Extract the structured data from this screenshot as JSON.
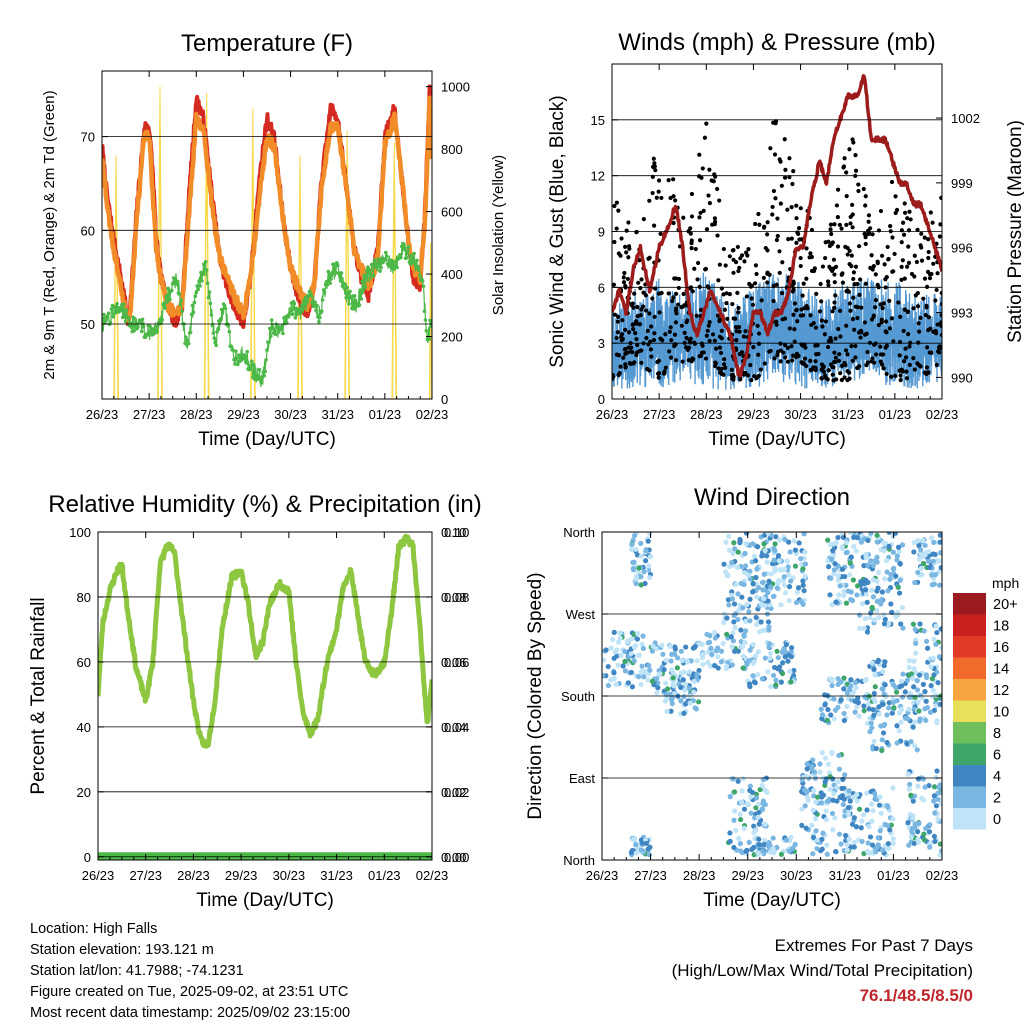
{
  "info": {
    "location": "Location: High Falls",
    "elevation": "Station elevation: 193.121 m",
    "latlon": "Station lat/lon: 41.7988; -74.1231",
    "created": "Figure created on Tue, 2025-09-02, at 23:51 UTC",
    "recent": "Most recent data timestamp: 2025/09/02 23:15:00"
  },
  "extremes": {
    "title": "Extremes For Past 7 Days",
    "subtitle": "(High/Low/Max Wind/Total Precipitation)",
    "values": "76.1/48.5/8.5/0",
    "value_color": "#c0272d"
  },
  "chart_data": [
    {
      "id": "temperature",
      "type": "line",
      "title": "Temperature (F)",
      "xlabel": "Time (Day/UTC)",
      "ylabel": "2m & 9m T (Red, Orange) & 2m Td (Green)",
      "y2label": "Solar Insolation (Yellow)",
      "xticks": [
        "26/23",
        "27/23",
        "28/23",
        "29/23",
        "30/23",
        "31/23",
        "01/23",
        "02/23"
      ],
      "xlim": [
        0,
        7
      ],
      "ylim": [
        42,
        77
      ],
      "yticks": [
        50,
        60,
        70
      ],
      "y2lim": [
        0,
        1050
      ],
      "y2ticks": [
        0,
        200,
        400,
        600,
        800,
        1000
      ],
      "grid": true,
      "colors": {
        "t2m": "#d42a20",
        "t9m": "#f28c28",
        "td": "#4cb848",
        "solar": "#f7d94c"
      },
      "series": [
        {
          "key": "t2m",
          "axis": "left",
          "x": [
            0,
            0.1,
            0.25,
            0.4,
            0.5,
            0.55,
            0.6,
            0.75,
            0.9,
            1.0,
            1.08,
            1.15,
            1.25,
            1.4,
            1.55,
            1.7,
            1.85,
            2.0,
            2.15,
            2.35,
            2.5,
            2.65,
            2.8,
            3.0,
            3.15,
            3.35,
            3.5,
            3.65,
            3.85,
            4.0,
            4.15,
            4.35,
            4.5,
            4.65,
            4.85,
            5.0,
            5.2,
            5.35,
            5.5,
            5.65,
            5.85,
            6.0,
            6.2,
            6.35,
            6.5,
            6.6,
            6.75,
            6.85,
            6.95,
            7.0
          ],
          "y": [
            69,
            64,
            59,
            55,
            52,
            50,
            52,
            63,
            71,
            71,
            66,
            59,
            55,
            52,
            50,
            52,
            64,
            74,
            72,
            63,
            57,
            54,
            52,
            50,
            55,
            66,
            72,
            70,
            61,
            56,
            53,
            51,
            54,
            65,
            73,
            72,
            64,
            58,
            55,
            53,
            58,
            70,
            73,
            66,
            59,
            55,
            54,
            62,
            75,
            68
          ]
        },
        {
          "key": "t9m",
          "axis": "left",
          "x": [
            0,
            0.1,
            0.25,
            0.4,
            0.5,
            0.6,
            0.75,
            0.9,
            1.0,
            1.15,
            1.25,
            1.4,
            1.55,
            1.7,
            1.85,
            2.0,
            2.15,
            2.35,
            2.5,
            2.65,
            2.8,
            3.0,
            3.15,
            3.35,
            3.5,
            3.65,
            3.85,
            4.0,
            4.15,
            4.35,
            4.5,
            4.65,
            4.85,
            5.0,
            5.2,
            5.35,
            5.5,
            5.65,
            5.85,
            6.0,
            6.2,
            6.35,
            6.5,
            6.6,
            6.75,
            6.85,
            6.95,
            7.0
          ],
          "y": [
            68,
            63,
            58,
            54,
            51,
            51,
            62,
            70,
            70,
            58,
            55,
            52,
            51,
            52,
            62,
            72,
            71,
            62,
            57,
            55,
            53,
            51,
            55,
            64,
            70,
            69,
            61,
            56,
            54,
            52,
            54,
            64,
            71,
            71,
            64,
            58,
            56,
            54,
            57,
            69,
            72,
            66,
            59,
            56,
            55,
            61,
            74,
            68
          ]
        },
        {
          "key": "td",
          "axis": "left",
          "x": [
            0,
            0.2,
            0.4,
            0.6,
            0.8,
            1.0,
            1.2,
            1.4,
            1.6,
            1.8,
            2.0,
            2.2,
            2.4,
            2.6,
            2.8,
            3.0,
            3.2,
            3.4,
            3.6,
            3.8,
            4.0,
            4.2,
            4.4,
            4.6,
            4.8,
            5.0,
            5.2,
            5.4,
            5.6,
            5.8,
            6.0,
            6.2,
            6.4,
            6.6,
            6.8,
            6.9,
            7.0
          ],
          "y": [
            50,
            51,
            52,
            50,
            50,
            49,
            50,
            53,
            55,
            47,
            54,
            56,
            48,
            52,
            46,
            47,
            45,
            44,
            50,
            49,
            52,
            51,
            53,
            51,
            55,
            56,
            53,
            52,
            55,
            56,
            57,
            56,
            58,
            57,
            55,
            48,
            51
          ]
        }
      ],
      "solar": {
        "axis": "right",
        "peak_x": [
          0.3,
          1.23,
          2.22,
          3.2,
          4.2,
          5.2,
          6.2,
          6.97
        ],
        "peak_w": [
          0.1,
          0.1,
          0.1,
          0.1,
          0.1,
          0.1,
          0.1,
          0.05
        ],
        "peak_y": [
          780,
          1000,
          980,
          930,
          780,
          860,
          820,
          500
        ]
      }
    },
    {
      "id": "winds",
      "type": "scatter",
      "title": "Winds (mph) & Pressure (mb)",
      "xlabel": "Time (Day/UTC)",
      "ylabel": "Sonic Wind & Gust (Blue, Black)",
      "y2label": "Station Pressure (Maroon)",
      "xticks": [
        "26/23",
        "27/23",
        "28/23",
        "29/23",
        "30/23",
        "31/23",
        "01/23",
        "02/23"
      ],
      "xlim": [
        0,
        7
      ],
      "ylim": [
        0,
        18
      ],
      "yticks": [
        0,
        3,
        6,
        9,
        12,
        15
      ],
      "y2lim": [
        989.0,
        1004.5
      ],
      "y2ticks": [
        990,
        993,
        996,
        999,
        1002
      ],
      "grid": true,
      "colors": {
        "wind": "#5599d2",
        "gust": "#000000",
        "pressure": "#9c1c1c"
      },
      "wind_envelope": {
        "x": [
          0,
          0.5,
          1,
          1.5,
          2,
          2.5,
          3,
          3.5,
          4,
          4.5,
          5,
          5.5,
          6,
          6.5,
          7
        ],
        "hi": [
          5,
          6,
          6.5,
          5.5,
          7,
          5,
          6,
          7,
          6.5,
          5.5,
          6.5,
          6.5,
          6.5,
          5.5,
          6
        ],
        "lo": [
          0.5,
          0.5,
          0.5,
          1,
          0.5,
          0.5,
          0.5,
          1,
          0.5,
          0.5,
          1,
          1,
          0.5,
          0.5,
          1
        ]
      },
      "gust_envelope": {
        "x": [
          0,
          0.5,
          1,
          1.5,
          2,
          2.5,
          3,
          3.5,
          4,
          4.5,
          5,
          5.5,
          6,
          6.5,
          7
        ],
        "hi": [
          11,
          9,
          15,
          10,
          15,
          8,
          9,
          16,
          11,
          8,
          15,
          10,
          12,
          9,
          11
        ],
        "lo": [
          1,
          2,
          1,
          2,
          2,
          1,
          1,
          2,
          2,
          1,
          1,
          2,
          1,
          1,
          2
        ]
      },
      "pressure": {
        "x": [
          0,
          0.15,
          0.3,
          0.45,
          0.6,
          0.8,
          1.0,
          1.2,
          1.35,
          1.5,
          1.65,
          1.8,
          1.95,
          2.1,
          2.3,
          2.5,
          2.7,
          2.85,
          3.0,
          3.15,
          3.3,
          3.45,
          3.6,
          3.75,
          3.9,
          4.05,
          4.2,
          4.4,
          4.55,
          4.7,
          4.85,
          5.0,
          5.2,
          5.35,
          5.5,
          5.65,
          5.8,
          5.95,
          6.1,
          6.25,
          6.4,
          6.55,
          6.7,
          6.85,
          7.0
        ],
        "y": [
          993,
          994,
          993,
          995,
          996,
          994,
          996,
          997,
          998,
          996,
          993,
          992,
          993,
          994,
          993,
          992,
          990,
          991,
          993,
          993,
          992,
          993,
          993,
          994,
          996,
          996,
          998,
          1000,
          999,
          1001,
          1002,
          1003,
          1003,
          1004,
          1001,
          1001,
          1001,
          1000,
          999,
          999,
          998,
          998,
          997,
          996,
          995
        ]
      }
    },
    {
      "id": "rh",
      "type": "line",
      "title": "Relative Humidity (%) & Precipitation (in)",
      "xlabel": "Time (Day/UTC)",
      "ylabel": "Percent & Total Rainfall",
      "xticks": [
        "26/23",
        "27/23",
        "28/23",
        "29/23",
        "30/23",
        "31/23",
        "01/23",
        "02/23"
      ],
      "xlim": [
        0,
        7
      ],
      "ylim": [
        -1,
        100
      ],
      "yticks": [
        0,
        20,
        40,
        60,
        80,
        100
      ],
      "y2lim": [
        -0.001,
        0.1
      ],
      "y2ticks": [
        "0.00",
        "0.02",
        "0.04",
        "0.06",
        "0.08",
        "0.10"
      ],
      "grid": true,
      "colors": {
        "rh": "#8dc63f",
        "precip": "#4cb848"
      },
      "series": [
        {
          "key": "rh",
          "axis": "left",
          "x": [
            0,
            0.1,
            0.25,
            0.4,
            0.5,
            0.6,
            0.8,
            1.0,
            1.15,
            1.3,
            1.45,
            1.6,
            1.8,
            2.0,
            2.15,
            2.3,
            2.45,
            2.6,
            2.8,
            3.0,
            3.15,
            3.3,
            3.45,
            3.6,
            3.8,
            4.0,
            4.15,
            4.3,
            4.45,
            4.6,
            4.8,
            5.0,
            5.15,
            5.3,
            5.45,
            5.6,
            5.8,
            6.0,
            6.15,
            6.3,
            6.45,
            6.6,
            6.75,
            6.9,
            7.0
          ],
          "y": [
            50,
            72,
            82,
            88,
            90,
            78,
            58,
            48,
            60,
            90,
            96,
            94,
            70,
            48,
            36,
            34,
            48,
            70,
            86,
            88,
            78,
            62,
            66,
            78,
            84,
            82,
            60,
            44,
            38,
            42,
            60,
            70,
            84,
            88,
            74,
            60,
            56,
            60,
            75,
            95,
            98,
            96,
            70,
            40,
            55
          ]
        },
        {
          "key": "precip",
          "axis": "right",
          "x": [
            0,
            7
          ],
          "y": [
            0,
            0
          ]
        }
      ]
    },
    {
      "id": "direction",
      "type": "scatter",
      "title": "Wind Direction",
      "xlabel": "Time (Day/UTC)",
      "ylabel": "Direction (Colored By Speed)",
      "xticks": [
        "26/23",
        "27/23",
        "28/23",
        "29/23",
        "30/23",
        "31/23",
        "01/23",
        "02/23"
      ],
      "xlim": [
        0,
        7
      ],
      "ylim": [
        0,
        360
      ],
      "ytick_labels": [
        "North",
        "East",
        "South",
        "West",
        "North"
      ],
      "yticks": [
        0,
        90,
        180,
        270,
        360
      ],
      "grid": true,
      "legend": {
        "title": "mph",
        "labels": [
          "20+",
          "18",
          "16",
          "14",
          "12",
          "10",
          "8",
          "6",
          "4",
          "2",
          "0"
        ],
        "colors": [
          "#9b1b1e",
          "#c8201f",
          "#e33a26",
          "#f06a2a",
          "#f7a540",
          "#e8e05a",
          "#6fc05d",
          "#3fa66a",
          "#3f86c3",
          "#79b6e2",
          "#bfe3f7"
        ],
        "placement": "right"
      },
      "clusters": [
        {
          "x": [
            0,
            1.0
          ],
          "y": [
            190,
            250
          ]
        },
        {
          "x": [
            0.6,
            1.0
          ],
          "y": [
            300,
            360
          ]
        },
        {
          "x": [
            0.6,
            1.0
          ],
          "y": [
            5,
            25
          ]
        },
        {
          "x": [
            1.0,
            2.0
          ],
          "y": [
            180,
            240
          ]
        },
        {
          "x": [
            1.3,
            2.0
          ],
          "y": [
            160,
            200
          ]
        },
        {
          "x": [
            2.0,
            3.0
          ],
          "y": [
            210,
            250
          ]
        },
        {
          "x": [
            2.5,
            3.5
          ],
          "y": [
            250,
            360
          ]
        },
        {
          "x": [
            2.6,
            3.4
          ],
          "y": [
            5,
            90
          ]
        },
        {
          "x": [
            3.0,
            4.0
          ],
          "y": [
            190,
            240
          ]
        },
        {
          "x": [
            3.3,
            4.2
          ],
          "y": [
            280,
            360
          ]
        },
        {
          "x": [
            3.2,
            4.0
          ],
          "y": [
            5,
            25
          ]
        },
        {
          "x": [
            4.1,
            5.0
          ],
          "y": [
            5,
            120
          ]
        },
        {
          "x": [
            4.5,
            5.5
          ],
          "y": [
            150,
            200
          ]
        },
        {
          "x": [
            4.6,
            5.4
          ],
          "y": [
            280,
            360
          ]
        },
        {
          "x": [
            5.0,
            6.0
          ],
          "y": [
            5,
            80
          ]
        },
        {
          "x": [
            5.5,
            6.5
          ],
          "y": [
            120,
            220
          ]
        },
        {
          "x": [
            5.3,
            6.2
          ],
          "y": [
            250,
            360
          ]
        },
        {
          "x": [
            6.3,
            7.0
          ],
          "y": [
            5,
            100
          ]
        },
        {
          "x": [
            6.4,
            7.0
          ],
          "y": [
            150,
            260
          ]
        },
        {
          "x": [
            6.4,
            7.0
          ],
          "y": [
            300,
            360
          ]
        }
      ]
    }
  ]
}
